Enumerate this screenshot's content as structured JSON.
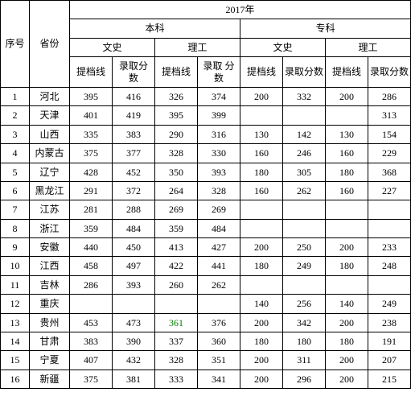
{
  "header": {
    "seq": "序号",
    "province": "省份",
    "year": "2017年",
    "benke": "本科",
    "zhuanke": "专科",
    "wenshi": "文史",
    "ligong": "理工",
    "tidang": "提档线",
    "luqu_a": "录取分\n数",
    "luqu_b": "录取\n分数",
    "luqu_c": "录取分数"
  },
  "rows": [
    {
      "seq": "1",
      "prov": "河北",
      "bw_t": "395",
      "bw_l": "416",
      "bl_t": "326",
      "bl_l": "374",
      "zw_t": "200",
      "zw_l": "332",
      "zl_t": "200",
      "zl_l": "286"
    },
    {
      "seq": "2",
      "prov": "天津",
      "bw_t": "401",
      "bw_l": "419",
      "bl_t": "395",
      "bl_l": "399",
      "zw_t": "",
      "zw_l": "",
      "zl_t": "",
      "zl_l": "313"
    },
    {
      "seq": "3",
      "prov": "山西",
      "bw_t": "335",
      "bw_l": "383",
      "bl_t": "290",
      "bl_l": "316",
      "zw_t": "130",
      "zw_l": "142",
      "zl_t": "130",
      "zl_l": "154"
    },
    {
      "seq": "4",
      "prov": "内蒙古",
      "bw_t": "375",
      "bw_l": "377",
      "bl_t": "328",
      "bl_l": "330",
      "zw_t": "160",
      "zw_l": "246",
      "zl_t": "160",
      "zl_l": "229"
    },
    {
      "seq": "5",
      "prov": "辽宁",
      "bw_t": "428",
      "bw_l": "452",
      "bl_t": "350",
      "bl_l": "393",
      "zw_t": "180",
      "zw_l": "305",
      "zl_t": "180",
      "zl_l": "368"
    },
    {
      "seq": "6",
      "prov": "黑龙江",
      "bw_t": "291",
      "bw_l": "372",
      "bl_t": "264",
      "bl_l": "328",
      "zw_t": "160",
      "zw_l": "262",
      "zl_t": "160",
      "zl_l": "227"
    },
    {
      "seq": "7",
      "prov": "江苏",
      "bw_t": "281",
      "bw_l": "288",
      "bl_t": "269",
      "bl_l": "269",
      "zw_t": "",
      "zw_l": "",
      "zl_t": "",
      "zl_l": ""
    },
    {
      "seq": "8",
      "prov": "浙江",
      "bw_t": "359",
      "bw_l": "484",
      "bl_t": "359",
      "bl_l": "484",
      "zw_t": "",
      "zw_l": "",
      "zl_t": "",
      "zl_l": ""
    },
    {
      "seq": "9",
      "prov": "安徽",
      "bw_t": "440",
      "bw_l": "450",
      "bl_t": "413",
      "bl_l": "427",
      "zw_t": "200",
      "zw_l": "250",
      "zl_t": "200",
      "zl_l": "233"
    },
    {
      "seq": "10",
      "prov": "江西",
      "bw_t": "458",
      "bw_l": "497",
      "bl_t": "422",
      "bl_l": "441",
      "zw_t": "180",
      "zw_l": "249",
      "zl_t": "180",
      "zl_l": "248"
    },
    {
      "seq": "11",
      "prov": "吉林",
      "bw_t": "286",
      "bw_l": "393",
      "bl_t": "260",
      "bl_l": "262",
      "zw_t": "",
      "zw_l": "",
      "zl_t": "",
      "zl_l": ""
    },
    {
      "seq": "12",
      "prov": "重庆",
      "bw_t": "",
      "bw_l": "",
      "bl_t": "",
      "bl_l": "",
      "zw_t": "140",
      "zw_l": "256",
      "zl_t": "140",
      "zl_l": "249"
    },
    {
      "seq": "13",
      "prov": "贵州",
      "bw_t": "453",
      "bw_l": "473",
      "bl_t": "361",
      "bl_l": "376",
      "zw_t": "200",
      "zw_l": "342",
      "zl_t": "200",
      "zl_l": "238",
      "green_col": "bl_t"
    },
    {
      "seq": "14",
      "prov": "甘肃",
      "bw_t": "383",
      "bw_l": "390",
      "bl_t": "337",
      "bl_l": "360",
      "zw_t": "180",
      "zw_l": "180",
      "zl_t": "180",
      "zl_l": "191"
    },
    {
      "seq": "15",
      "prov": "宁夏",
      "bw_t": "407",
      "bw_l": "432",
      "bl_t": "328",
      "bl_l": "351",
      "zw_t": "200",
      "zw_l": "311",
      "zl_t": "200",
      "zl_l": "207"
    },
    {
      "seq": "16",
      "prov": "新疆",
      "bw_t": "375",
      "bw_l": "381",
      "bl_t": "333",
      "bl_l": "341",
      "zw_t": "200",
      "zw_l": "296",
      "zl_t": "200",
      "zl_l": "215"
    }
  ]
}
